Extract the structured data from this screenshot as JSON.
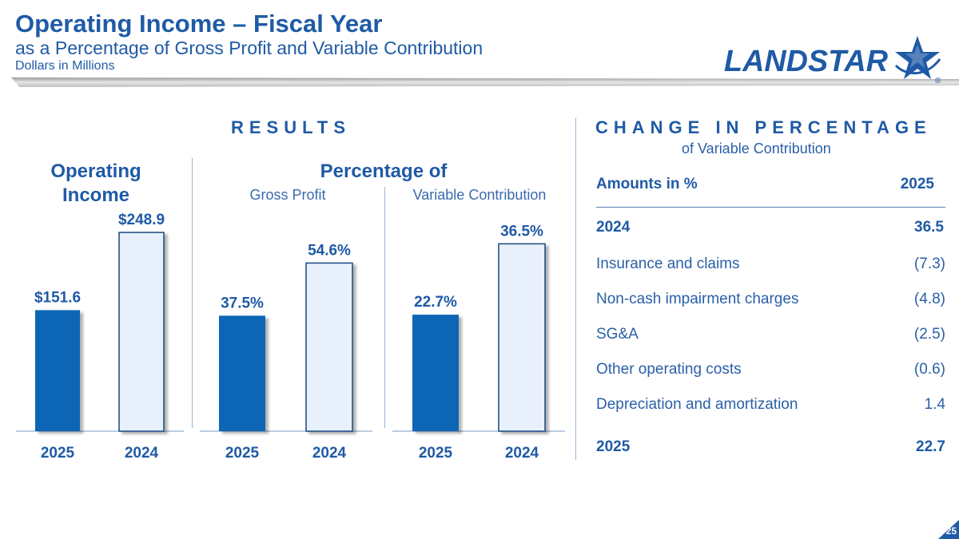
{
  "header": {
    "title": "Operating Income – Fiscal Year",
    "subtitle": "as a Percentage of Gross Profit and Variable Contribution",
    "units": "Dollars in Millions"
  },
  "logo": {
    "text": "LANDSTAR",
    "mark": "®"
  },
  "results": {
    "title": "RESULTS",
    "operating_income_heading": "Operating Income",
    "percentage_heading": "Percentage of",
    "gross_profit_label": "Gross Profit",
    "variable_contribution_label": "Variable Contribution"
  },
  "change": {
    "title": "CHANGE IN PERCENTAGE",
    "subtitle": "of Variable Contribution",
    "header": {
      "label": "Amounts in %",
      "year": "2025"
    },
    "start": {
      "label": "2024",
      "value": "36.5"
    },
    "rows": [
      {
        "label": "Insurance and claims",
        "value": "(7.3)"
      },
      {
        "label": "Non-cash impairment charges",
        "value": "(4.8)"
      },
      {
        "label": "SG&A",
        "value": "(2.5)"
      },
      {
        "label": "Other operating costs",
        "value": "(0.6)"
      },
      {
        "label": "Depreciation and amortization",
        "value": "1.4"
      }
    ],
    "end": {
      "label": "2025",
      "value": "22.7"
    }
  },
  "colors": {
    "primary": "#1f5aa6",
    "bar_current": "#0a66b5",
    "bar_prior": "#e8f1fb",
    "bar_prior_border": "#17467f"
  },
  "page_number": "25",
  "chart_data": [
    {
      "type": "bar",
      "title": "Operating Income",
      "categories": [
        "2025",
        "2024"
      ],
      "values": [
        151.6,
        248.9
      ],
      "labels": [
        "$151.6",
        "$248.9"
      ],
      "unit": "$M",
      "ylim": [
        0,
        270
      ]
    },
    {
      "type": "bar",
      "title": "Percentage of Gross Profit",
      "categories": [
        "2025",
        "2024"
      ],
      "values": [
        37.5,
        54.6
      ],
      "labels": [
        "37.5%",
        "54.6%"
      ],
      "unit": "%",
      "ylim": [
        0,
        70
      ]
    },
    {
      "type": "bar",
      "title": "Percentage of Variable Contribution",
      "categories": [
        "2025",
        "2024"
      ],
      "values": [
        22.7,
        36.5
      ],
      "labels": [
        "22.7%",
        "36.5%"
      ],
      "unit": "%",
      "ylim": [
        0,
        42
      ]
    }
  ]
}
